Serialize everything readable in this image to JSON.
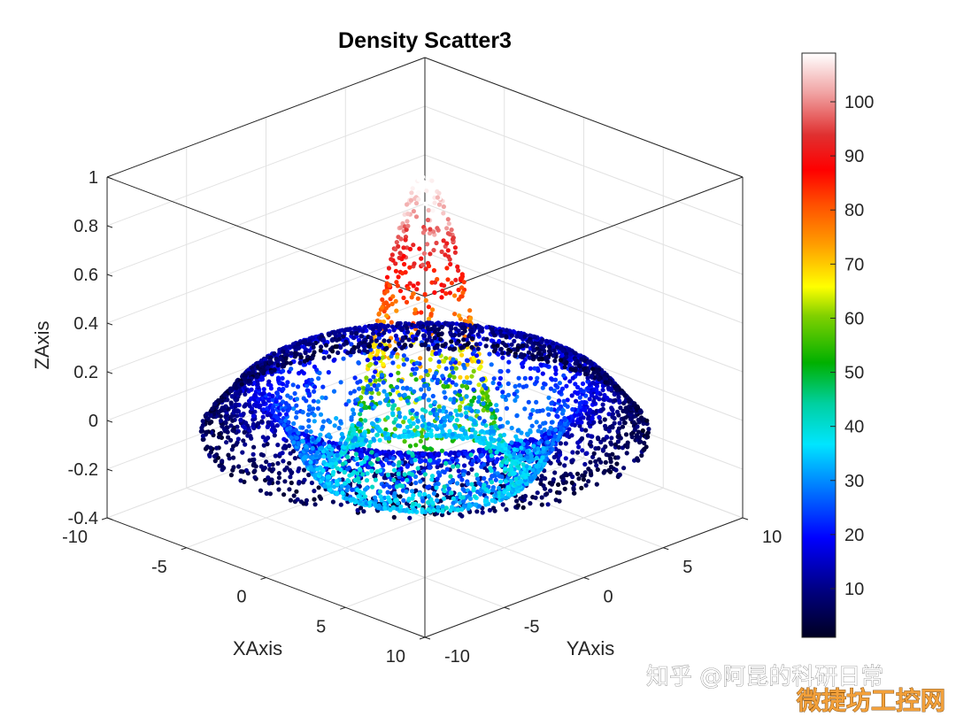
{
  "chart_data": {
    "type": "scatter",
    "subtype": "3d-density-scatter",
    "title": "Density Scatter3",
    "xlabel": "XAxis",
    "ylabel": "YAxis",
    "zlabel": "ZAxis",
    "xlim": [
      -10,
      10
    ],
    "ylim": [
      -10,
      10
    ],
    "zlim": [
      -0.4,
      1
    ],
    "x_ticks": [
      "-10",
      "-5",
      "0",
      "5",
      "10"
    ],
    "y_ticks": [
      "-10",
      "-5",
      "0",
      "5",
      "10"
    ],
    "z_ticks": [
      "-0.4",
      "-0.2",
      "0",
      "0.2",
      "0.4",
      "0.6",
      "0.8",
      "1"
    ],
    "surface": "z = sin(r)/r, r = sqrt(x^2 + y^2), r ≤ 10",
    "points": 5000,
    "color_encoding": "local point density",
    "colorbar": {
      "label": "",
      "ticks": [
        "10",
        "20",
        "30",
        "40",
        "50",
        "60",
        "70",
        "80",
        "90",
        "100"
      ],
      "range": [
        1,
        109
      ],
      "colormap": [
        "#000022",
        "#0000ff",
        "#00e5ff",
        "#00cc00",
        "#ffff00",
        "#ff8800",
        "#ff0000",
        "#ffffff"
      ]
    },
    "grid": true,
    "box": true
  },
  "watermark": {
    "line1": "知乎 @阿昆的科研日常",
    "line2": "微捷坊工控网"
  }
}
